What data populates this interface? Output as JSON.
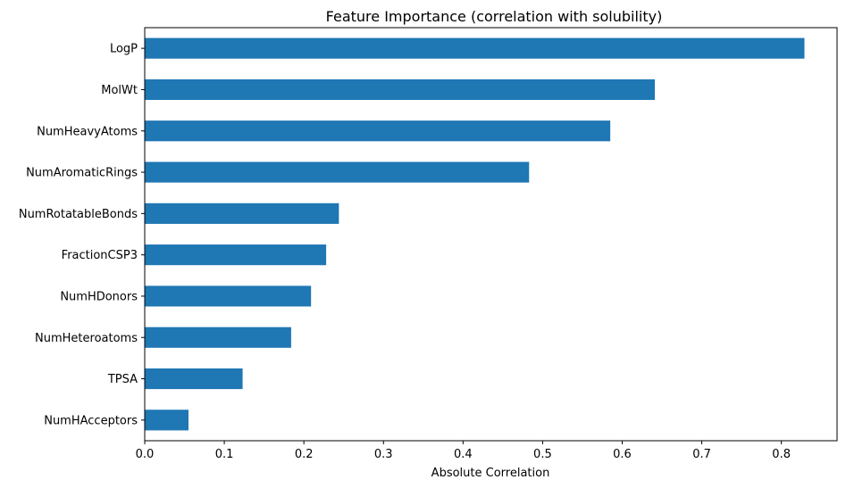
{
  "chart_data": {
    "type": "bar",
    "orientation": "horizontal",
    "title": "Feature Importance (correlation with solubility)",
    "xlabel": "Absolute Correlation",
    "ylabel": "",
    "categories": [
      "LogP",
      "MolWt",
      "NumHeavyAtoms",
      "NumAromaticRings",
      "NumRotatableBonds",
      "FractionCSP3",
      "NumHDonors",
      "NumHeteroatoms",
      "TPSA",
      "NumHAcceptors"
    ],
    "values": [
      0.829,
      0.641,
      0.585,
      0.483,
      0.244,
      0.228,
      0.209,
      0.184,
      0.123,
      0.055
    ],
    "xlim": [
      0,
      0.87
    ],
    "xticks": [
      "0.0",
      "0.1",
      "0.2",
      "0.3",
      "0.4",
      "0.5",
      "0.6",
      "0.7",
      "0.8"
    ],
    "grid": false,
    "legend": "none",
    "bar_color": "#1f77b4"
  }
}
